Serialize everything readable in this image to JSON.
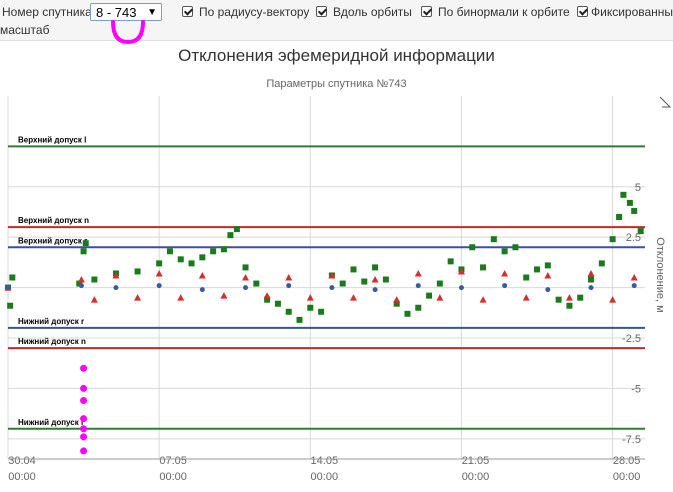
{
  "toolbar": {
    "sat_label": "Номер спутника",
    "sat_value": "8 - 743",
    "chk_radius": "По радиусу-вектору",
    "chk_orbit": "Вдоль орбиты",
    "chk_binormal": "По бинормали к орбите",
    "chk_fixed": "Фиксированный",
    "scale_label": "масштаб"
  },
  "chart_data": {
    "type": "scatter",
    "title": "Отклонения эфемеридной информации",
    "subtitle": "Параметры спутника №743",
    "ylabel": "Отклонение, м",
    "xlim": [
      0,
      29.5
    ],
    "ylim": [
      -8.5,
      9.5
    ],
    "xticks": [
      {
        "value": 0,
        "label": "30.04",
        "sub": "00:00"
      },
      {
        "value": 7,
        "label": "07.05",
        "sub": "00:00"
      },
      {
        "value": 14,
        "label": "14.05",
        "sub": "00:00"
      },
      {
        "value": 21,
        "label": "21.05",
        "sub": "00:00"
      },
      {
        "value": 28,
        "label": "28.05",
        "sub": "00:00"
      }
    ],
    "yticks": [
      {
        "value": 5,
        "label": "5"
      },
      {
        "value": 2.5,
        "label": "2.5"
      },
      {
        "value": 0,
        "label": ""
      },
      {
        "value": -2.5,
        "label": "-2.5"
      },
      {
        "value": -5,
        "label": "-5"
      },
      {
        "value": -7.5,
        "label": "-7.5"
      }
    ],
    "bands": [
      {
        "label": "Верхний допуск l",
        "value": 7.0,
        "color": "#2e7d32"
      },
      {
        "label": "Верхний допуск n",
        "value": 3.0,
        "color": "#c62828"
      },
      {
        "label": "Верхний допуск r",
        "value": 2.0,
        "color": "#3d4f9e"
      },
      {
        "label": "Нижний допуск r",
        "value": -2.0,
        "color": "#3d4f9e"
      },
      {
        "label": "Нижний допуск n",
        "value": -3.0,
        "color": "#c62828"
      },
      {
        "label": "Нижний допуск l",
        "value": -7.0,
        "color": "#2e7d32"
      }
    ],
    "series": [
      {
        "color": "#1b7a1b",
        "marker": "square",
        "values": [
          [
            0.0,
            0.0
          ],
          [
            0.1,
            -0.9
          ],
          [
            0.2,
            0.5
          ],
          [
            3.3,
            0.2
          ],
          [
            3.5,
            1.8
          ],
          [
            3.6,
            2.2
          ],
          [
            4.0,
            0.4
          ],
          [
            5.0,
            0.7
          ],
          [
            6.0,
            0.8
          ],
          [
            7.0,
            1.2
          ],
          [
            7.5,
            1.8
          ],
          [
            8.0,
            1.4
          ],
          [
            8.5,
            1.2
          ],
          [
            9.0,
            1.5
          ],
          [
            9.5,
            1.8
          ],
          [
            10.0,
            1.9
          ],
          [
            10.3,
            2.6
          ],
          [
            10.6,
            2.9
          ],
          [
            11.0,
            1.0
          ],
          [
            11.5,
            0.2
          ],
          [
            12.0,
            -0.6
          ],
          [
            12.5,
            -0.8
          ],
          [
            13.0,
            -1.2
          ],
          [
            13.5,
            -1.6
          ],
          [
            14.0,
            -1.0
          ],
          [
            14.5,
            -1.2
          ],
          [
            15.0,
            0.6
          ],
          [
            15.5,
            0.2
          ],
          [
            16.0,
            0.9
          ],
          [
            16.5,
            0.3
          ],
          [
            17.0,
            1.0
          ],
          [
            17.5,
            0.4
          ],
          [
            18.0,
            -0.8
          ],
          [
            18.5,
            -1.3
          ],
          [
            19.0,
            -1.0
          ],
          [
            19.5,
            -0.4
          ],
          [
            20.0,
            0.2
          ],
          [
            20.5,
            1.3
          ],
          [
            21.0,
            0.9
          ],
          [
            21.5,
            2.0
          ],
          [
            22.0,
            1.0
          ],
          [
            22.5,
            2.4
          ],
          [
            23.0,
            1.8
          ],
          [
            23.5,
            2.0
          ],
          [
            24.0,
            0.5
          ],
          [
            24.5,
            0.9
          ],
          [
            25.0,
            1.1
          ],
          [
            25.5,
            -0.6
          ],
          [
            26.0,
            -0.9
          ],
          [
            26.5,
            -0.5
          ],
          [
            27.0,
            0.4
          ],
          [
            27.5,
            1.2
          ],
          [
            28.0,
            2.4
          ],
          [
            28.3,
            3.5
          ],
          [
            28.5,
            4.6
          ],
          [
            28.8,
            4.2
          ],
          [
            29.0,
            3.8
          ],
          [
            29.3,
            2.8
          ]
        ]
      },
      {
        "color": "#d32f2f",
        "marker": "triangle",
        "values": [
          [
            0.0,
            0.0
          ],
          [
            3.4,
            0.4
          ],
          [
            4.0,
            -0.6
          ],
          [
            5.0,
            0.6
          ],
          [
            6.0,
            -0.5
          ],
          [
            7.0,
            0.7
          ],
          [
            8.0,
            -0.5
          ],
          [
            9.0,
            0.6
          ],
          [
            10.0,
            -0.4
          ],
          [
            11.0,
            0.5
          ],
          [
            12.0,
            -0.4
          ],
          [
            13.0,
            0.5
          ],
          [
            14.0,
            -0.5
          ],
          [
            15.0,
            0.6
          ],
          [
            16.0,
            -0.5
          ],
          [
            17.0,
            0.4
          ],
          [
            18.0,
            -0.6
          ],
          [
            19.0,
            0.7
          ],
          [
            20.0,
            -0.5
          ],
          [
            21.0,
            0.8
          ],
          [
            22.0,
            -0.6
          ],
          [
            23.0,
            0.7
          ],
          [
            24.0,
            -0.5
          ],
          [
            25.0,
            0.6
          ],
          [
            26.0,
            -0.5
          ],
          [
            27.0,
            0.7
          ],
          [
            28.0,
            -0.6
          ],
          [
            29.0,
            0.5
          ]
        ]
      },
      {
        "color": "#3d5a9e",
        "marker": "circle",
        "values": [
          [
            0.0,
            0.0
          ],
          [
            3.4,
            0.1
          ],
          [
            5.0,
            0.0
          ],
          [
            7.0,
            0.1
          ],
          [
            9.0,
            -0.1
          ],
          [
            11.0,
            0.0
          ],
          [
            13.0,
            0.1
          ],
          [
            15.0,
            0.0
          ],
          [
            17.0,
            -0.1
          ],
          [
            19.0,
            0.1
          ],
          [
            21.0,
            0.0
          ],
          [
            23.0,
            0.1
          ],
          [
            25.0,
            -0.1
          ],
          [
            27.0,
            0.0
          ],
          [
            29.0,
            0.1
          ]
        ]
      },
      {
        "color": "#ff00ff",
        "marker": "circle",
        "values": [
          [
            3.5,
            -4.0
          ],
          [
            3.5,
            -5.0
          ],
          [
            3.5,
            -5.6
          ],
          [
            3.5,
            -6.5
          ],
          [
            3.5,
            -7.0
          ],
          [
            3.5,
            -7.4
          ],
          [
            3.5,
            -8.1
          ]
        ]
      }
    ]
  }
}
